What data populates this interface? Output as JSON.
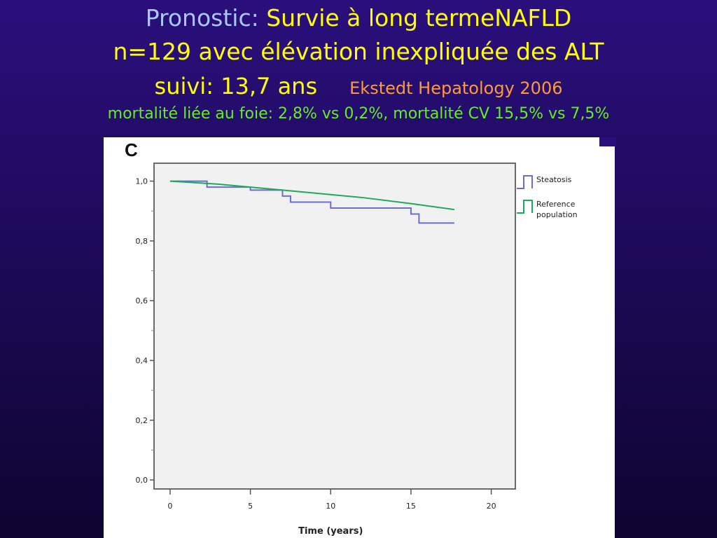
{
  "slide": {
    "title_prefix": "Pronostic:",
    "title_main": "Survie à long termeNAFLD",
    "subtitle": "n=129 avec élévation inexpliquée des ALT",
    "followup": "suivi: 13,7 ans",
    "reference": "Ekstedt Hepatology 2006",
    "mortality_note": "mortalité liée au foie: 2,8% vs 0,2%, mortalité CV 15,5% vs 7,5%",
    "colors": {
      "background": "#2a0f7c",
      "title_prefix": "#a9c8ff",
      "title": "#ffff00",
      "reference": "#ff9a3a",
      "mortality_note": "#66ee22"
    }
  },
  "chart_data": {
    "type": "line",
    "panel_label": "C",
    "title": "",
    "xlabel": "Time (years)",
    "ylabel": "",
    "xlim": [
      -1,
      21.5
    ],
    "ylim": [
      -0.03,
      1.06
    ],
    "xticks": [
      0,
      5,
      10,
      15,
      20
    ],
    "xtick_labels": [
      "0",
      "5",
      "10",
      "15",
      "20"
    ],
    "yticks": [
      0.0,
      0.2,
      0.4,
      0.6,
      0.8,
      1.0
    ],
    "ytick_labels": [
      "0,0",
      "0,2",
      "0,4",
      "0,6",
      "0,8",
      "1,0"
    ],
    "grid": false,
    "legend_position": "right",
    "series": [
      {
        "name": "Steatosis",
        "color": "#6a6fc8",
        "step": true,
        "x": [
          0,
          2.3,
          5,
          7,
          7.5,
          10,
          15,
          15.5,
          17.7
        ],
        "y": [
          1.0,
          0.98,
          0.97,
          0.95,
          0.93,
          0.91,
          0.89,
          0.86,
          0.86
        ]
      },
      {
        "name": "Reference population",
        "color": "#1eaa5a",
        "step": false,
        "x": [
          0,
          3,
          6,
          9,
          12,
          15,
          17.7
        ],
        "y": [
          1.0,
          0.99,
          0.975,
          0.96,
          0.945,
          0.925,
          0.905
        ]
      }
    ]
  }
}
